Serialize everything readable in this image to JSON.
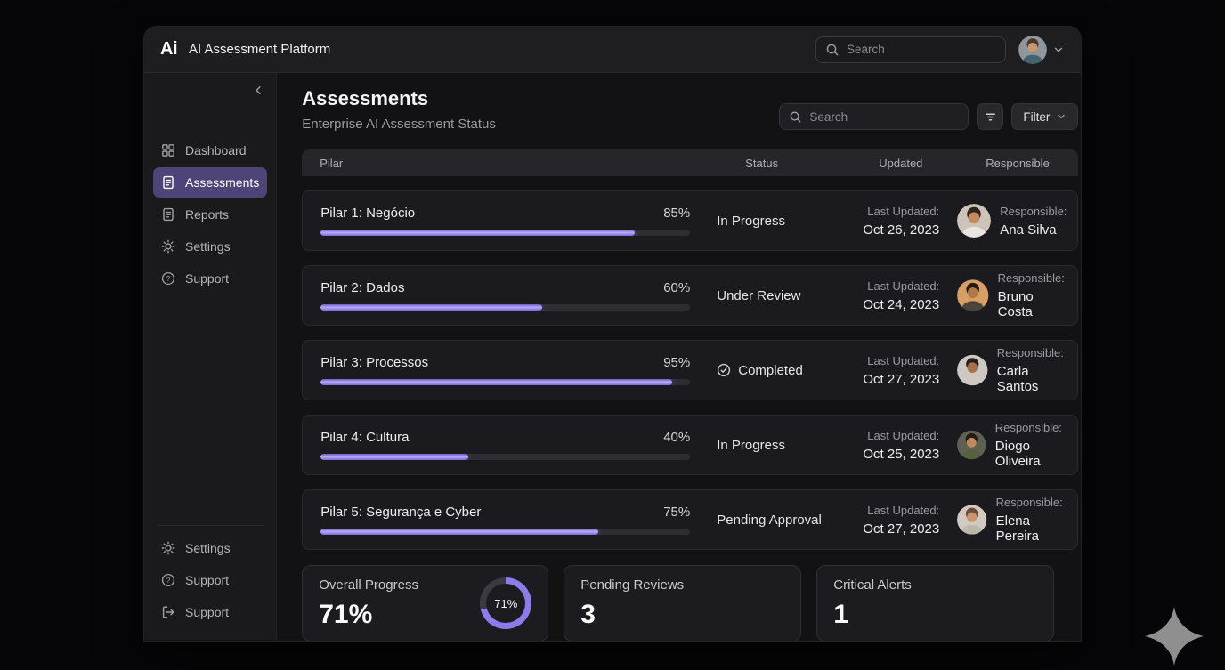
{
  "app": {
    "logo": "Ai",
    "title": "AI Assessment Platform"
  },
  "topbar": {
    "search_placeholder": "Search",
    "user_avatar": {
      "bg": "#8e979e",
      "hair": "#4a382a",
      "skin": "#c8976e",
      "shirt": "#41656e"
    }
  },
  "sidebar": {
    "items": [
      {
        "label": "Dashboard",
        "icon": "grid-icon",
        "active": false
      },
      {
        "label": "Assessments",
        "icon": "document-icon",
        "active": true
      },
      {
        "label": "Reports",
        "icon": "document-icon",
        "active": false
      },
      {
        "label": "Settings",
        "icon": "gear-icon",
        "active": false
      },
      {
        "label": "Support",
        "icon": "help-icon",
        "active": false
      }
    ],
    "footer_items": [
      {
        "label": "Settings",
        "icon": "gear-icon"
      },
      {
        "label": "Support",
        "icon": "help-icon"
      },
      {
        "label": "Support",
        "icon": "logout-icon"
      }
    ]
  },
  "header": {
    "title": "Assessments",
    "subtitle": "Enterprise AI Assessment Status",
    "search_placeholder": "Search",
    "filter_label": "Filter"
  },
  "table": {
    "columns": {
      "pilar": "Pilar",
      "status": "Status",
      "updated": "Updated",
      "responsible": "Responsible"
    },
    "updated_label": "Last Updated:",
    "responsible_label": "Responsible:",
    "rows": [
      {
        "pilar": "Pilar 1: Negócio",
        "percent_label": "85%",
        "progress": 85,
        "status": "In Progress",
        "updated": "Oct 26, 2023",
        "responsible": "Ana Silva",
        "avatar": {
          "bg": "#cdc3b8",
          "hair": "#33241b",
          "skin": "#c18a60",
          "shirt": "#e9e5df"
        }
      },
      {
        "pilar": "Pilar 2: Dados",
        "percent_label": "60%",
        "progress": 60,
        "status": "Under Review",
        "updated": "Oct 24, 2023",
        "responsible": "Bruno Costa",
        "avatar": {
          "bg": "#d79f63",
          "hair": "#241810",
          "skin": "#b07848",
          "shirt": "#4a443c"
        }
      },
      {
        "pilar": "Pilar 3: Processos",
        "percent_label": "95%",
        "progress": 95,
        "status": "Completed",
        "updated": "Oct 27, 2023",
        "responsible": "Carla Santos",
        "avatar": {
          "bg": "#ccc8c3",
          "hair": "#2a2019",
          "skin": "#a9714a",
          "shirt": "#cfc9c2"
        }
      },
      {
        "pilar": "Pilar 4: Cultura",
        "percent_label": "40%",
        "progress": 40,
        "status": "In Progress",
        "updated": "Oct 25, 2023",
        "responsible": "Diogo Oliveira",
        "avatar": {
          "bg": "#5d6153",
          "hair": "#241a10",
          "skin": "#c08a5e",
          "shirt": "#55603f"
        }
      },
      {
        "pilar": "Pilar 5: Segurança e Cyber",
        "percent_label": "75%",
        "progress": 75,
        "status": "Pending Approval",
        "updated": "Oct 27, 2023",
        "responsible": "Elena Pereira",
        "avatar": {
          "bg": "#d2cac1",
          "hair": "#6e4c34",
          "skin": "#c89570",
          "shirt": "#bfb6aa"
        }
      }
    ]
  },
  "summary": {
    "cards": [
      {
        "label": "Overall Progress",
        "value": "71%",
        "donut": 71,
        "donut_label": "71%"
      },
      {
        "label": "Pending Reviews",
        "value": "3"
      },
      {
        "label": "Critical Alerts",
        "value": "1"
      }
    ]
  },
  "colors": {
    "accent": "#8c7bea",
    "active_item_bg": "#4e4478",
    "progress_track": "#2d2d32",
    "donut_track": "#3a3a40",
    "page_bg": "#060608",
    "main_bg": "#121215",
    "row_bg": "#1b1b1f"
  }
}
